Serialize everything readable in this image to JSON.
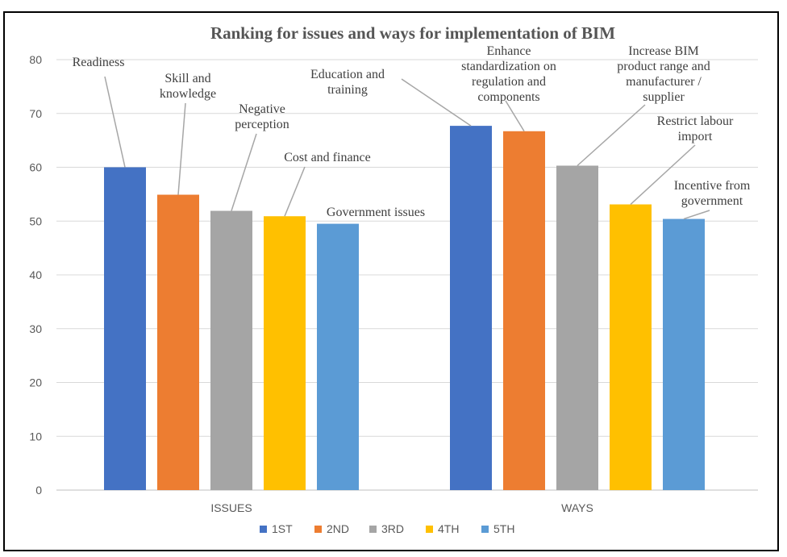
{
  "chart_data": {
    "type": "bar",
    "title": "Ranking for issues and ways for implementation of BIM",
    "categories": [
      "ISSUES",
      "WAYS"
    ],
    "ylim": [
      0,
      80
    ],
    "yticks": [
      "0",
      "10",
      "20",
      "30",
      "40",
      "50",
      "60",
      "70",
      "80"
    ],
    "grid": true,
    "legend_position": "bottom",
    "series": [
      {
        "name": "1ST",
        "color": "#4472C4",
        "values": [
          60,
          67.7
        ]
      },
      {
        "name": "2ND",
        "color": "#ED7D31",
        "values": [
          54.9,
          66.7
        ]
      },
      {
        "name": "3RD",
        "color": "#A5A5A5",
        "values": [
          51.9,
          60.3
        ]
      },
      {
        "name": "4TH",
        "color": "#FFC000",
        "values": [
          50.9,
          53.1
        ]
      },
      {
        "name": "5TH",
        "color": "#5B9BD5",
        "values": [
          49.5,
          50.4
        ]
      }
    ],
    "annotations": [
      {
        "lines": [
          "Readiness"
        ]
      },
      {
        "lines": [
          "Skill and",
          "knowledge"
        ]
      },
      {
        "lines": [
          "Negative",
          "perception"
        ]
      },
      {
        "lines": [
          "Cost and finance"
        ]
      },
      {
        "lines": [
          "Government issues"
        ]
      },
      {
        "lines": [
          "Education and",
          "training"
        ]
      },
      {
        "lines": [
          "Enhance",
          "standardization on",
          "regulation and",
          "components"
        ]
      },
      {
        "lines": [
          "Increase BIM",
          "product range and",
          "manufacturer /",
          "supplier"
        ]
      },
      {
        "lines": [
          "Restrict labour",
          "import"
        ]
      },
      {
        "lines": [
          "Incentive from",
          "government"
        ]
      }
    ]
  }
}
